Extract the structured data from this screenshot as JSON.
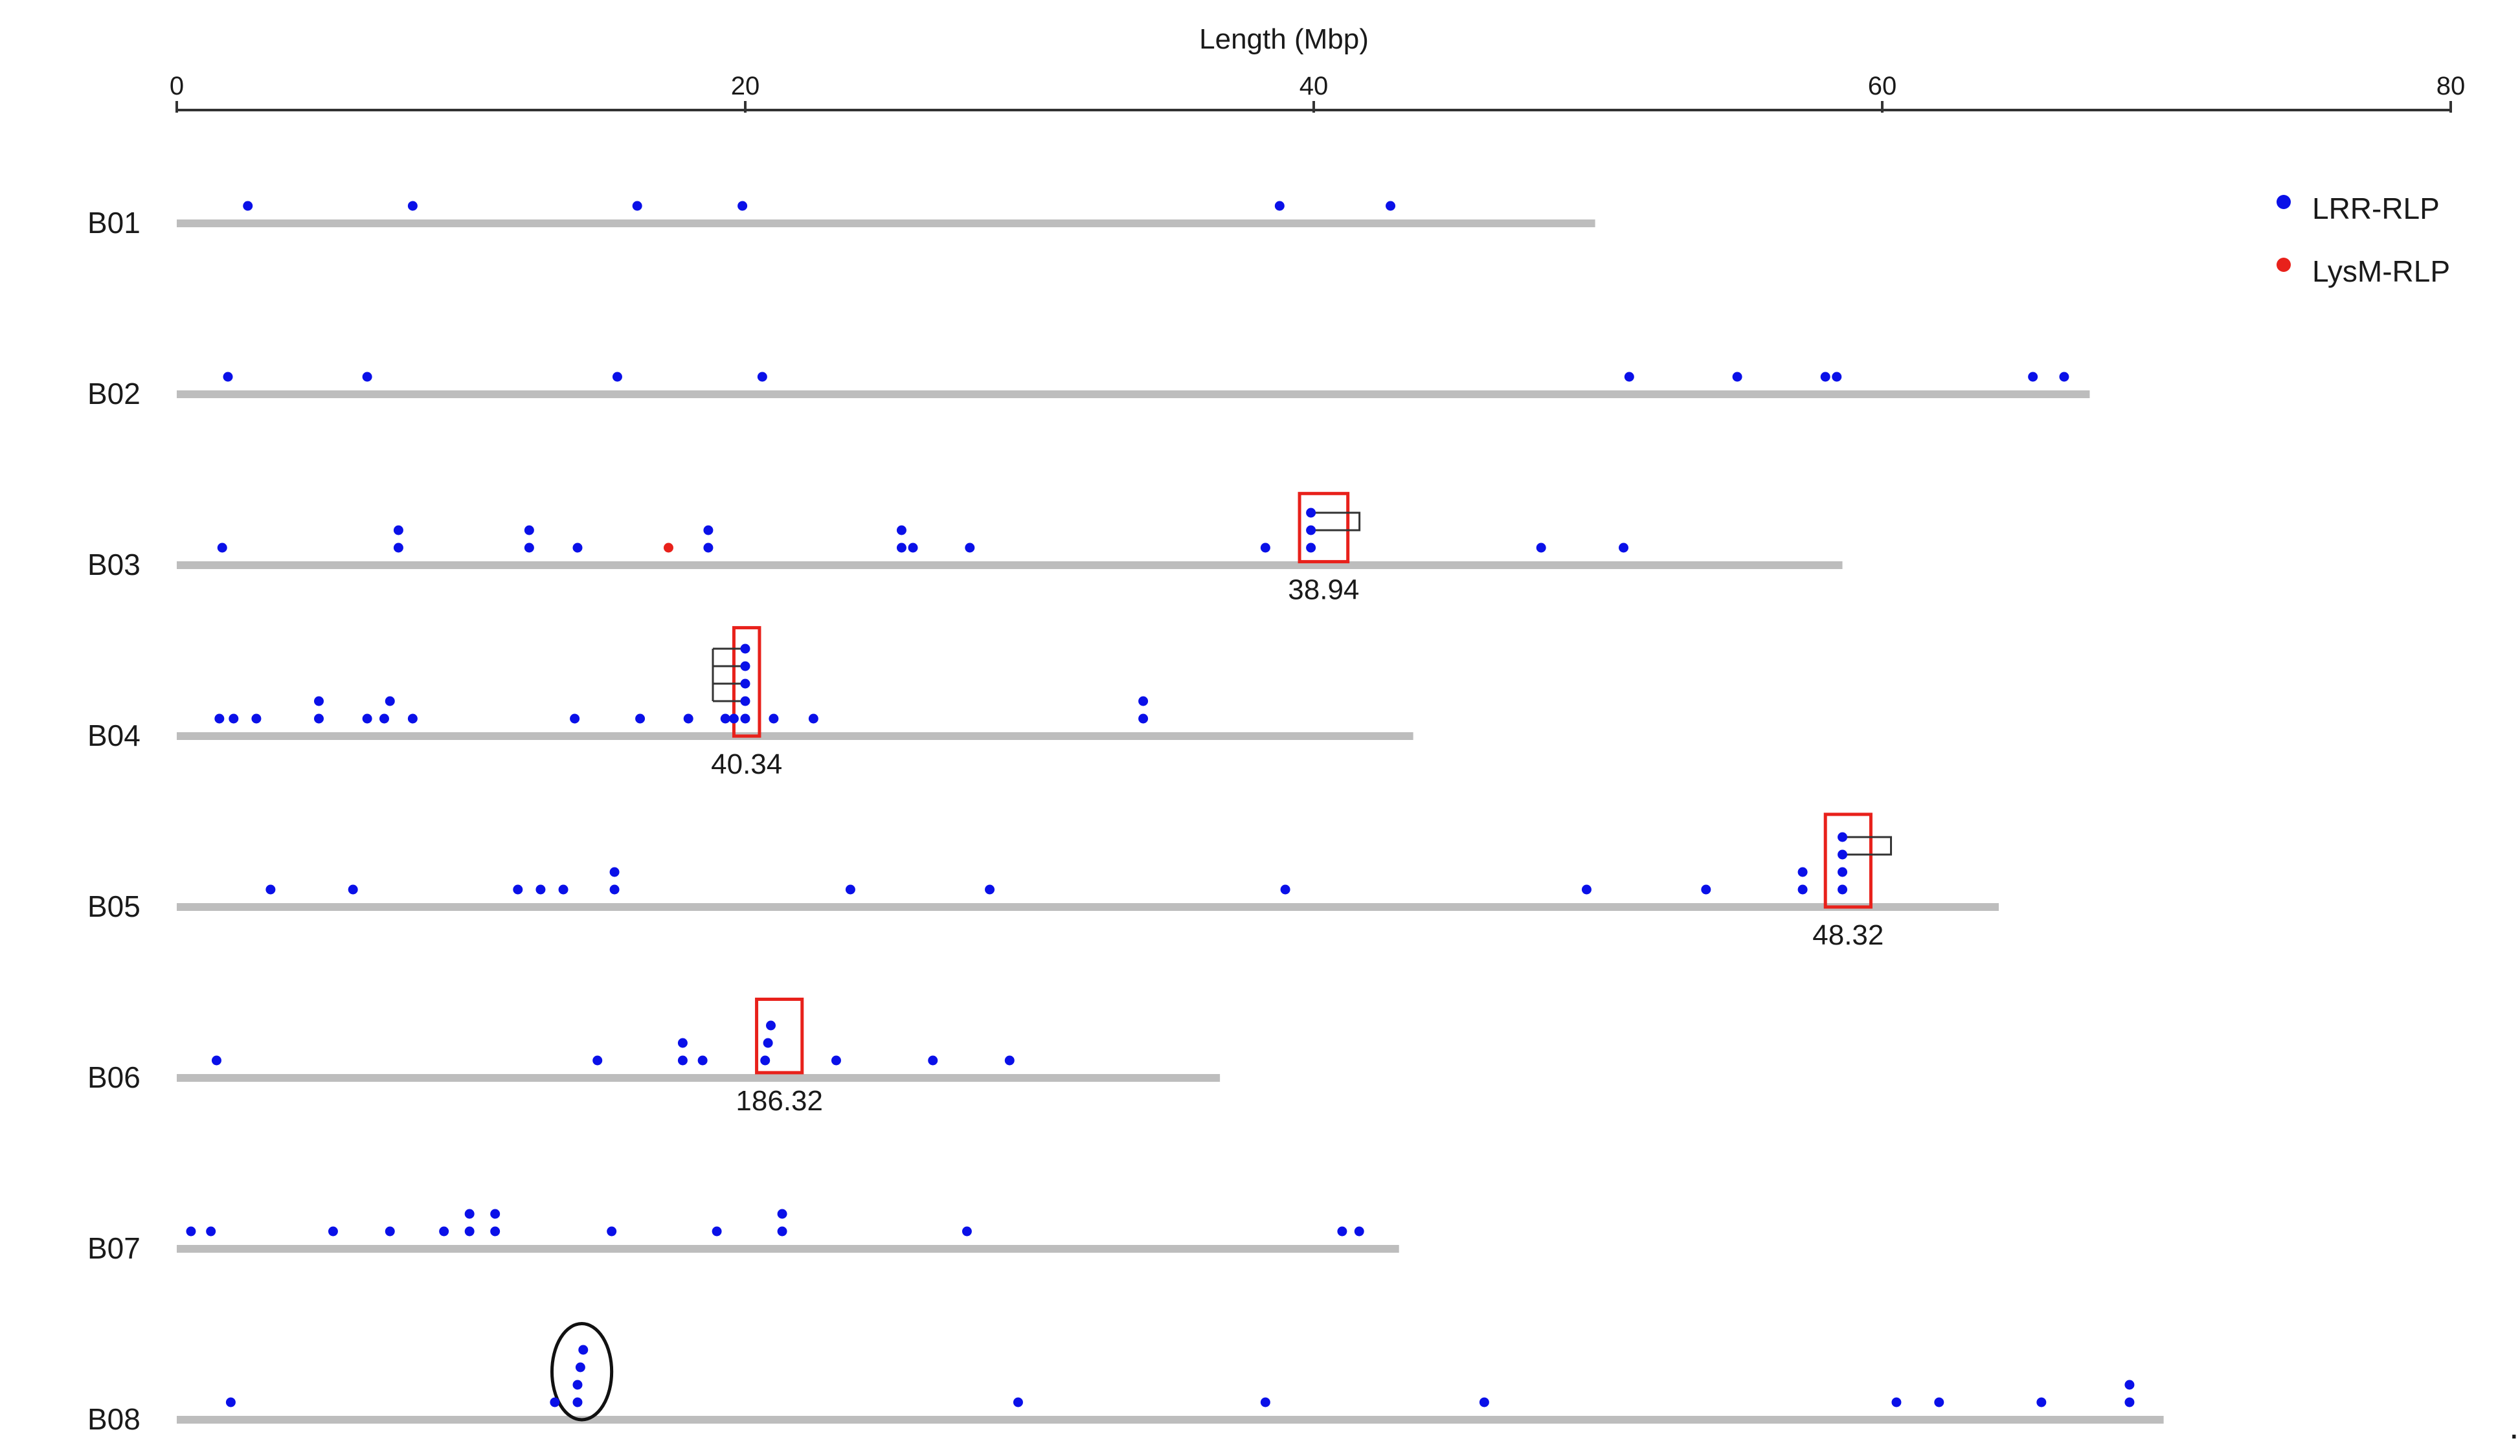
{
  "chart_data": {
    "type": "scatter",
    "title": "",
    "xlabel": "Length (Mbp)",
    "ylabel": "",
    "xlim": [
      0,
      80
    ],
    "x_ticks": [
      0,
      20,
      40,
      60,
      80
    ],
    "grid": false,
    "legend_position": "top-right",
    "colors": {
      "chromosome": "#bdbdbd",
      "axis": "#333333",
      "box": "#e8211b",
      "oval": "#111111",
      "bracket": "#333333"
    },
    "series": [
      {
        "name": "LRR-RLP",
        "color": "#0a10e8"
      },
      {
        "name": "LysM-RLP",
        "color": "#e8211b"
      }
    ],
    "chromosomes": [
      {
        "name": "B01",
        "length": 49.9,
        "genes": [
          {
            "x": 2.5,
            "level": 1
          },
          {
            "x": 8.3,
            "level": 1
          },
          {
            "x": 16.2,
            "level": 1
          },
          {
            "x": 19.9,
            "level": 1
          },
          {
            "x": 38.8,
            "level": 1
          },
          {
            "x": 42.7,
            "level": 1
          }
        ]
      },
      {
        "name": "B02",
        "length": 67.3,
        "genes": [
          {
            "x": 1.8,
            "level": 1
          },
          {
            "x": 6.7,
            "level": 1
          },
          {
            "x": 15.5,
            "level": 1
          },
          {
            "x": 20.6,
            "level": 1
          },
          {
            "x": 51.1,
            "level": 1
          },
          {
            "x": 54.9,
            "level": 1
          },
          {
            "x": 58.0,
            "level": 1
          },
          {
            "x": 58.4,
            "level": 1
          },
          {
            "x": 65.3,
            "level": 1
          },
          {
            "x": 66.4,
            "level": 1
          }
        ]
      },
      {
        "name": "B03",
        "length": 58.6,
        "genes": [
          {
            "x": 1.6,
            "level": 1
          },
          {
            "x": 7.8,
            "level": 1
          },
          {
            "x": 7.8,
            "level": 2
          },
          {
            "x": 12.4,
            "level": 1
          },
          {
            "x": 12.4,
            "level": 2
          },
          {
            "x": 14.1,
            "level": 1
          },
          {
            "x": 17.3,
            "level": 1,
            "series": "LysM-RLP"
          },
          {
            "x": 18.7,
            "level": 1
          },
          {
            "x": 18.7,
            "level": 2
          },
          {
            "x": 25.5,
            "level": 1
          },
          {
            "x": 25.5,
            "level": 2
          },
          {
            "x": 25.9,
            "level": 1
          },
          {
            "x": 27.9,
            "level": 1
          },
          {
            "x": 38.3,
            "level": 1
          },
          {
            "x": 39.9,
            "level": 1
          },
          {
            "x": 39.9,
            "level": 2
          },
          {
            "x": 39.9,
            "level": 3
          },
          {
            "x": 48.0,
            "level": 1
          },
          {
            "x": 50.9,
            "level": 1
          }
        ]
      },
      {
        "name": "B04",
        "length": 43.5,
        "genes": [
          {
            "x": 1.5,
            "level": 1
          },
          {
            "x": 2.0,
            "level": 1
          },
          {
            "x": 2.8,
            "level": 1
          },
          {
            "x": 5.0,
            "level": 1
          },
          {
            "x": 5.0,
            "level": 2
          },
          {
            "x": 6.7,
            "level": 1
          },
          {
            "x": 7.3,
            "level": 1
          },
          {
            "x": 7.5,
            "level": 2
          },
          {
            "x": 8.3,
            "level": 1
          },
          {
            "x": 14.0,
            "level": 1
          },
          {
            "x": 16.3,
            "level": 1
          },
          {
            "x": 18.0,
            "level": 1
          },
          {
            "x": 19.3,
            "level": 1
          },
          {
            "x": 19.6,
            "level": 1
          },
          {
            "x": 20.0,
            "level": 1
          },
          {
            "x": 20.0,
            "level": 2
          },
          {
            "x": 20.0,
            "level": 3
          },
          {
            "x": 20.0,
            "level": 4
          },
          {
            "x": 20.0,
            "level": 5
          },
          {
            "x": 21.0,
            "level": 1
          },
          {
            "x": 22.4,
            "level": 1
          },
          {
            "x": 34.0,
            "level": 1
          },
          {
            "x": 34.0,
            "level": 2
          }
        ]
      },
      {
        "name": "B05",
        "length": 64.1,
        "genes": [
          {
            "x": 3.3,
            "level": 1
          },
          {
            "x": 6.2,
            "level": 1
          },
          {
            "x": 12.0,
            "level": 1
          },
          {
            "x": 12.8,
            "level": 1
          },
          {
            "x": 13.6,
            "level": 1
          },
          {
            "x": 15.4,
            "level": 1
          },
          {
            "x": 15.4,
            "level": 2
          },
          {
            "x": 23.7,
            "level": 1
          },
          {
            "x": 28.6,
            "level": 1
          },
          {
            "x": 39.0,
            "level": 1
          },
          {
            "x": 49.6,
            "level": 1
          },
          {
            "x": 53.8,
            "level": 1
          },
          {
            "x": 57.2,
            "level": 1
          },
          {
            "x": 57.2,
            "level": 2
          },
          {
            "x": 58.6,
            "level": 1
          },
          {
            "x": 58.6,
            "level": 2
          },
          {
            "x": 58.6,
            "level": 3
          },
          {
            "x": 58.6,
            "level": 4
          }
        ]
      },
      {
        "name": "B06",
        "length": 36.7,
        "genes": [
          {
            "x": 1.4,
            "level": 1
          },
          {
            "x": 14.8,
            "level": 1
          },
          {
            "x": 17.8,
            "level": 1
          },
          {
            "x": 17.8,
            "level": 2
          },
          {
            "x": 18.5,
            "level": 1
          },
          {
            "x": 20.7,
            "level": 1
          },
          {
            "x": 20.8,
            "level": 2
          },
          {
            "x": 20.9,
            "level": 3
          },
          {
            "x": 23.2,
            "level": 1
          },
          {
            "x": 26.6,
            "level": 1
          },
          {
            "x": 29.3,
            "level": 1
          }
        ]
      },
      {
        "name": "B07",
        "length": 43.0,
        "genes": [
          {
            "x": 0.5,
            "level": 1
          },
          {
            "x": 1.2,
            "level": 1
          },
          {
            "x": 5.5,
            "level": 1
          },
          {
            "x": 7.5,
            "level": 1
          },
          {
            "x": 9.4,
            "level": 1
          },
          {
            "x": 10.3,
            "level": 1
          },
          {
            "x": 10.3,
            "level": 2
          },
          {
            "x": 11.2,
            "level": 1
          },
          {
            "x": 11.2,
            "level": 2
          },
          {
            "x": 15.3,
            "level": 1
          },
          {
            "x": 19.0,
            "level": 1
          },
          {
            "x": 21.3,
            "level": 1
          },
          {
            "x": 21.3,
            "level": 2
          },
          {
            "x": 27.8,
            "level": 1
          },
          {
            "x": 41.0,
            "level": 1
          },
          {
            "x": 41.6,
            "level": 1
          }
        ]
      },
      {
        "name": "B08",
        "length": 69.9,
        "genes": [
          {
            "x": 1.9,
            "level": 1
          },
          {
            "x": 13.3,
            "level": 1
          },
          {
            "x": 14.1,
            "level": 2
          },
          {
            "x": 14.1,
            "level": 1
          },
          {
            "x": 14.2,
            "level": 3
          },
          {
            "x": 14.3,
            "level": 4
          },
          {
            "x": 29.6,
            "level": 1
          },
          {
            "x": 38.3,
            "level": 1
          },
          {
            "x": 46.0,
            "level": 1
          },
          {
            "x": 60.5,
            "level": 1
          },
          {
            "x": 62.0,
            "level": 1
          },
          {
            "x": 65.6,
            "level": 1
          },
          {
            "x": 68.7,
            "level": 1
          },
          {
            "x": 68.7,
            "level": 2
          }
        ]
      }
    ],
    "annotations": [
      {
        "type": "box",
        "chrom": "B03",
        "x": [
          39.5,
          41.2
        ],
        "level_range": [
          0.2,
          4.1
        ],
        "label": "38.94",
        "bracket": {
          "x": 39.9,
          "levels": [
            2,
            3
          ]
        }
      },
      {
        "type": "box",
        "chrom": "B04",
        "x": [
          19.6,
          20.5
        ],
        "level_range": [
          0.0,
          6.2
        ],
        "label": "40.34",
        "bracket": {
          "x": 20.0,
          "levels": [
            2,
            3,
            4,
            5
          ],
          "side": "left"
        }
      },
      {
        "type": "box",
        "chrom": "B05",
        "x": [
          58.0,
          59.6
        ],
        "level_range": [
          0.0,
          5.3
        ],
        "label": "48.32",
        "bracket": {
          "x": 58.6,
          "levels": [
            3,
            4
          ]
        }
      },
      {
        "type": "box",
        "chrom": "B06",
        "x": [
          20.4,
          22.0
        ],
        "level_range": [
          0.3,
          4.5
        ],
        "label": "186.32"
      },
      {
        "type": "oval",
        "chrom": "B08",
        "x": [
          13.2,
          15.3
        ],
        "level_range": [
          0.0,
          5.5
        ]
      }
    ],
    "trailing_mark": "."
  }
}
